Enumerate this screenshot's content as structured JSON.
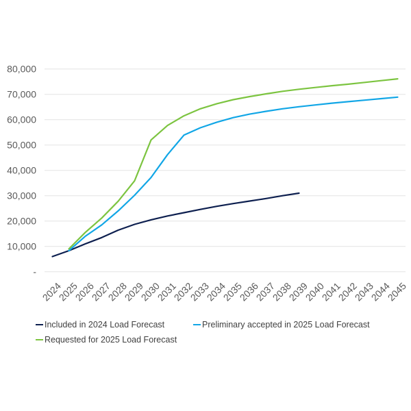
{
  "chart_data": {
    "type": "line",
    "title": "",
    "xlabel": "",
    "ylabel": "",
    "ylim": [
      0,
      80000
    ],
    "y_ticks": [
      0,
      10000,
      20000,
      30000,
      40000,
      50000,
      60000,
      70000,
      80000
    ],
    "y_tick_labels": [
      "-",
      "10,000",
      "20,000",
      "30,000",
      "40,000",
      "50,000",
      "60,000",
      "70,000",
      "80,000"
    ],
    "grid": true,
    "legend_position": "bottom",
    "categories": [
      "2024",
      "2025",
      "2026",
      "2027",
      "2028",
      "2029",
      "2030",
      "2031",
      "2032",
      "2033",
      "2034",
      "2035",
      "2036",
      "2037",
      "2038",
      "2039",
      "2040",
      "2041",
      "2042",
      "2043",
      "2044",
      "2045"
    ],
    "series": [
      {
        "name": "Included in 2024 Load Forecast",
        "color": "#0d1f4f",
        "values": [
          6000,
          8300,
          11000,
          13500,
          16400,
          18700,
          20500,
          22000,
          23300,
          24600,
          25800,
          26900,
          27900,
          28900,
          30000,
          31000,
          null,
          null,
          null,
          null,
          null,
          null
        ]
      },
      {
        "name": "Preliminary accepted in 2025 Load Forecast",
        "color": "#11a6e6",
        "values": [
          null,
          8300,
          14000,
          18500,
          24000,
          30200,
          37200,
          46200,
          53900,
          56800,
          59000,
          60800,
          62200,
          63300,
          64300,
          65100,
          65800,
          66500,
          67100,
          67700,
          68300,
          68900
        ]
      },
      {
        "name": "Requested for 2025 Load Forecast",
        "color": "#7cc440",
        "values": [
          null,
          9000,
          15500,
          21200,
          27800,
          35900,
          52000,
          57700,
          61500,
          64300,
          66300,
          67900,
          69100,
          70200,
          71200,
          72000,
          72700,
          73400,
          74000,
          74700,
          75400,
          76100
        ]
      }
    ]
  },
  "legend": {
    "items": [
      {
        "label": "Included in 2024 Load Forecast",
        "color": "#0d1f4f"
      },
      {
        "label": "Preliminary accepted in 2025 Load Forecast",
        "color": "#11a6e6"
      },
      {
        "label": "Requested for 2025 Load Forecast",
        "color": "#7cc440"
      }
    ]
  }
}
